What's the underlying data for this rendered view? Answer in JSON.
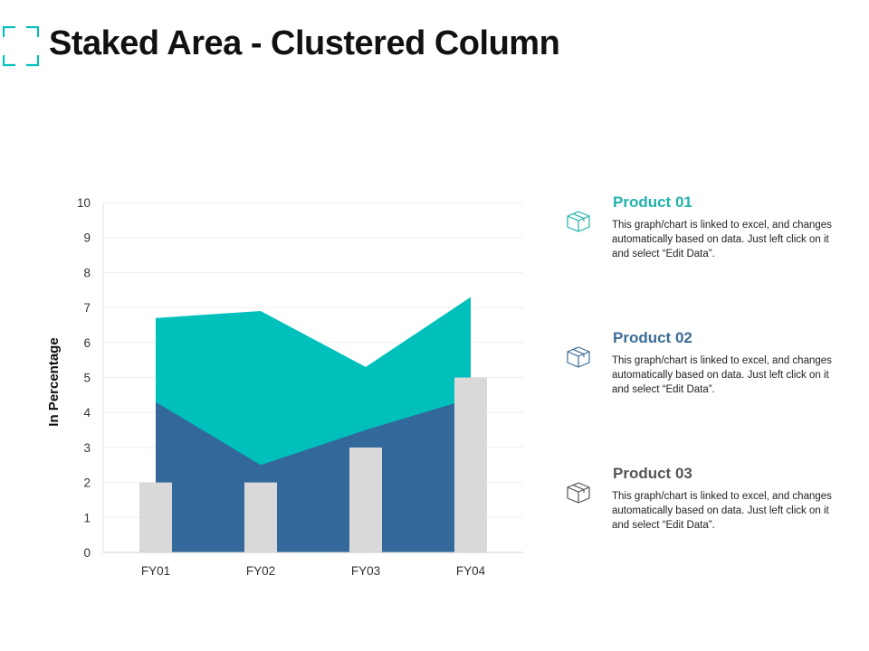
{
  "page": {
    "title": "Staked Area - Clustered Column"
  },
  "colors": {
    "accent": "#00c0bc",
    "navy": "#33689a",
    "bar": "#d9d9d9",
    "axis_text": "#333333",
    "grid": "#eeeeee",
    "product_01": "#20b2aa",
    "product_02": "#3b6c95",
    "product_03": "#555555"
  },
  "chart_data": {
    "type": "area",
    "ylabel": "In Percentage",
    "xlabel": "",
    "categories": [
      "FY01",
      "FY02",
      "FY03",
      "FY04"
    ],
    "ylim": [
      0,
      10
    ],
    "yticks": [
      "0",
      "1",
      "2",
      "3",
      "4",
      "5",
      "6",
      "7",
      "8",
      "9",
      "10"
    ],
    "grid": true,
    "series": [
      {
        "kind": "area",
        "values": [
          6.7,
          6.9,
          5.3,
          7.3
        ],
        "color": "#00c0bc"
      },
      {
        "kind": "area",
        "values": [
          4.3,
          2.5,
          3.5,
          4.4
        ],
        "color": "#33689a"
      },
      {
        "kind": "column",
        "values": [
          2,
          2,
          3,
          5
        ],
        "color": "#d9d9d9"
      }
    ]
  },
  "legend": [
    {
      "heading": "Product 01",
      "icon": "box-icon",
      "color": "#20b2aa",
      "text": "This graph/chart is linked to excel, and changes automatically based on data. Just left click on it and select “Edit Data”."
    },
    {
      "heading": "Product 02",
      "icon": "box-icon",
      "color": "#3b6c95",
      "text": "This graph/chart is linked to excel, and changes automatically based on data. Just left click on it and select “Edit Data”."
    },
    {
      "heading": "Product 03",
      "icon": "box-icon",
      "color": "#555555",
      "text": "This graph/chart is linked to excel, and changes automatically based on data. Just left click on it and select “Edit Data”."
    }
  ]
}
